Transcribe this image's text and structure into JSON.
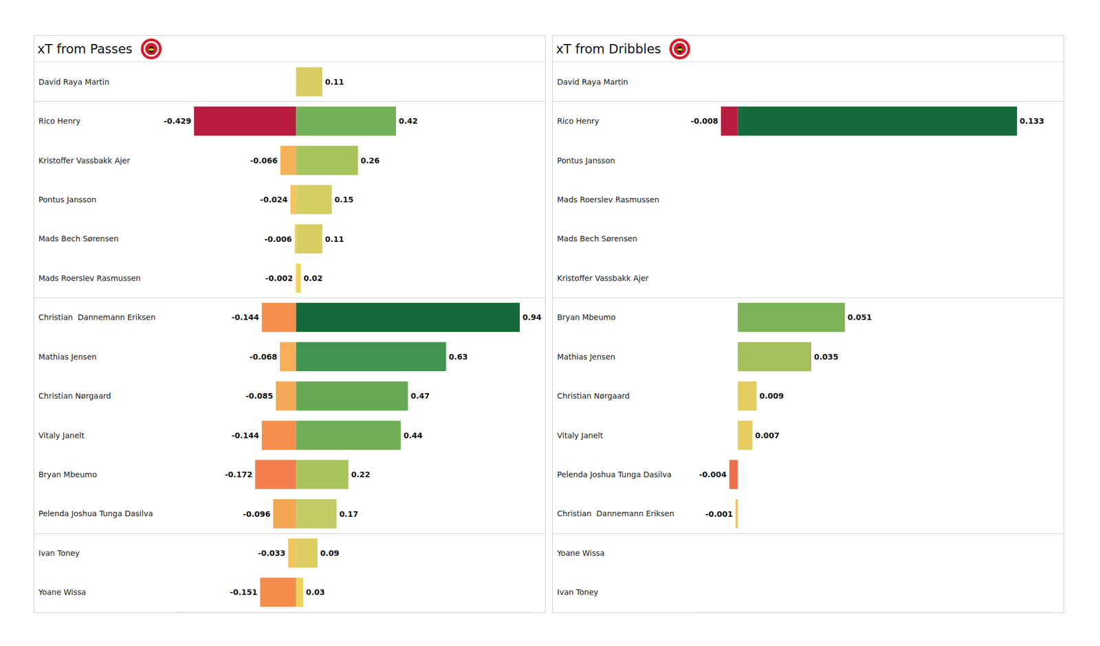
{
  "chart_data": [
    {
      "type": "bar",
      "orientation": "horizontal",
      "title": "xT from Passes",
      "stacked": true,
      "data_labels": true,
      "tick_labels": "y",
      "categories": [
        "David Raya Martin",
        "Rico Henry",
        "Kristoffer Vassbakk Ajer",
        "Pontus Jansson",
        "Mads Bech Sørensen",
        "Mads Roerslev Rasmussen",
        "Christian  Dannemann Eriksen",
        "Mathias Jensen",
        "Christian Nørgaard",
        "Vitaly Janelt",
        "Bryan Mbeumo",
        "Pelenda Joshua Tunga Dasilva",
        "Ivan Toney",
        "Yoane Wissa"
      ],
      "xlim": [
        -0.5,
        1.0
      ],
      "series": [
        {
          "values": [
            0,
            -0.429,
            -0.066,
            -0.024,
            -0.006,
            -0.002,
            -0.144,
            -0.068,
            -0.085,
            -0.144,
            -0.172,
            -0.096,
            -0.033,
            -0.151
          ],
          "colors": [
            "#f2d46a",
            "#b71c3f",
            "#f4b15a",
            "#f6c45f",
            "#f5d264",
            "#f5d568",
            "#f68f4e",
            "#f4af58",
            "#f4a957",
            "#f68f4e",
            "#f47e4d",
            "#f4a653",
            "#f0c45f",
            "#f68c4d"
          ]
        },
        {
          "values": [
            0.11,
            0.42,
            0.26,
            0.15,
            0.11,
            0.02,
            0.94,
            0.63,
            0.47,
            0.44,
            0.22,
            0.17,
            0.09,
            0.03
          ],
          "colors": [
            "#d9cc62",
            "#74b058",
            "#a6c35c",
            "#d3cd62",
            "#d9cc62",
            "#f3d260",
            "#146b39",
            "#419550",
            "#66aa55",
            "#72ae56",
            "#a9c45c",
            "#c4ca63",
            "#dccd64",
            "#efd15f"
          ]
        }
      ]
    },
    {
      "type": "bar",
      "orientation": "horizontal",
      "title": "xT from Dribbles",
      "stacked": true,
      "data_labels": true,
      "tick_labels": "y",
      "categories": [
        "David Raya Martin",
        "Rico Henry",
        "Pontus Jansson",
        "Mads Roerslev Rasmussen",
        "Mads Bech Sørensen",
        "Kristoffer Vassbakk Ajer",
        "Bryan Mbeumo",
        "Mathias Jensen",
        "Christian Nørgaard",
        "Vitaly Janelt",
        "Pelenda Joshua Tunga Dasilva",
        "Christian  Dannemann Eriksen",
        "Yoane Wissa",
        "Ivan Toney"
      ],
      "xlim": [
        -0.02,
        0.15
      ],
      "series": [
        {
          "values": [
            0,
            -0.008,
            0,
            0,
            0,
            0,
            0,
            0,
            0,
            0,
            -0.004,
            -0.001,
            0,
            0
          ],
          "colors": [
            "#f2d46a",
            "#b71c3f",
            "#f2d46a",
            "#f2d46a",
            "#f2d46a",
            "#f2d46a",
            "#f2d46a",
            "#f2d46a",
            "#f2d46a",
            "#f2d46a",
            "#ee6d4a",
            "#f3bc5b",
            "#f2d46a",
            "#f2d46a"
          ]
        },
        {
          "values": [
            0,
            0.133,
            0,
            0,
            0,
            0,
            0.051,
            0.035,
            0.009,
            0.007,
            0,
            0,
            0,
            0
          ],
          "colors": [
            "#f2d46a",
            "#146b39",
            "#f2d46a",
            "#f2d46a",
            "#f2d46a",
            "#f2d46a",
            "#7db35a",
            "#a4c05d",
            "#e3cd60",
            "#e5cd60",
            "#f2d46a",
            "#f2d46a",
            "#f2d46a",
            "#f2d46a"
          ]
        }
      ]
    }
  ]
}
